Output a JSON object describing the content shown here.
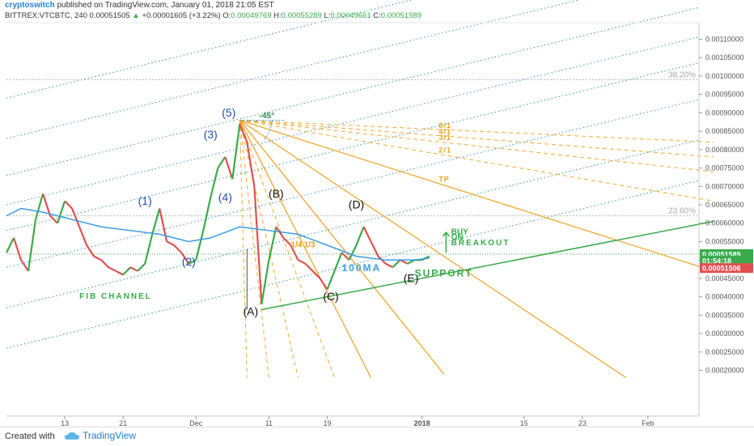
{
  "header": {
    "user": "cryptoswitch",
    "published": "published on TradingView.com, January 01, 2018 21:05 EST",
    "symbol": "BITTREX:VTCBTC, 240",
    "last": "0.00051505",
    "change": "+0.00001605 (+3.22%)",
    "o_label": "O:",
    "o": "0.00049769",
    "h_label": "H:",
    "h": "0.00055289",
    "l_label": "L:",
    "l": "0.00049661",
    "c_label": "C:",
    "c": "0.00051589"
  },
  "footer": {
    "created": "Created with",
    "brand": "TradingView"
  },
  "chart_data": {
    "type": "line",
    "title": "",
    "ylim": [
      0.00015,
      0.0011
    ],
    "y_ticks": [
      "0.00110000",
      "0.00105000",
      "0.00100000",
      "0.00095000",
      "0.00090000",
      "0.00085000",
      "0.00080000",
      "0.00075000",
      "0.00070000",
      "0.00065000",
      "0.00060000",
      "0.00055000",
      "0.00050000",
      "0.00045000",
      "0.00040000",
      "0.00035000",
      "0.00030000",
      "0.00025000",
      "0.00020000"
    ],
    "y_tick_values": [
      0.0011,
      0.00105,
      0.001,
      0.00095,
      0.0009,
      0.00085,
      0.0008,
      0.00075,
      0.0007,
      0.00065,
      0.0006,
      0.00055,
      0.0005,
      0.00045,
      0.0004,
      0.00035,
      0.0003,
      0.00025,
      0.0002
    ],
    "x_ticks": [
      {
        "label": "13",
        "day": 13
      },
      {
        "label": "21",
        "day": 21
      },
      {
        "label": "Dec",
        "day": 31
      },
      {
        "label": "11",
        "day": 41
      },
      {
        "label": "19",
        "day": 49
      },
      {
        "label": "2018",
        "day": 62
      },
      {
        "label": "15",
        "day": 76
      },
      {
        "label": "23",
        "day": 84
      },
      {
        "label": "Feb",
        "day": 93
      }
    ],
    "x_range_days": [
      5,
      100
    ],
    "price_path": [
      [
        5,
        0.00052
      ],
      [
        6,
        0.00056
      ],
      [
        7,
        0.0005
      ],
      [
        8,
        0.00047
      ],
      [
        9,
        0.00061
      ],
      [
        10,
        0.00068
      ],
      [
        11,
        0.00062
      ],
      [
        12,
        0.0006
      ],
      [
        13,
        0.00066
      ],
      [
        14,
        0.00064
      ],
      [
        15,
        0.00059
      ],
      [
        16,
        0.00054
      ],
      [
        17,
        0.00051
      ],
      [
        18,
        0.0005
      ],
      [
        19,
        0.00048
      ],
      [
        20,
        0.00047
      ],
      [
        21,
        0.00046
      ],
      [
        22,
        0.00048
      ],
      [
        23,
        0.00047
      ],
      [
        24,
        0.00049
      ],
      [
        25,
        0.00057
      ],
      [
        26,
        0.00064
      ],
      [
        27,
        0.00055
      ],
      [
        28,
        0.00054
      ],
      [
        29,
        0.00052
      ],
      [
        30,
        0.00049
      ],
      [
        31,
        0.0005
      ],
      [
        32,
        0.00058
      ],
      [
        33,
        0.00067
      ],
      [
        34,
        0.00075
      ],
      [
        35,
        0.00078
      ],
      [
        36,
        0.00072
      ],
      [
        37,
        0.00087
      ],
      [
        38,
        0.00082
      ],
      [
        39,
        0.0007
      ],
      [
        40,
        0.00038
      ],
      [
        41,
        0.0005
      ],
      [
        42,
        0.00059
      ],
      [
        43,
        0.00056
      ],
      [
        44,
        0.00054
      ],
      [
        45,
        0.0005
      ],
      [
        46,
        0.00049
      ],
      [
        47,
        0.00047
      ],
      [
        48,
        0.00045
      ],
      [
        49,
        0.00042
      ],
      [
        50,
        0.00047
      ],
      [
        51,
        0.00052
      ],
      [
        52,
        0.0005
      ],
      [
        53,
        0.00054
      ],
      [
        54,
        0.00059
      ],
      [
        55,
        0.00055
      ],
      [
        56,
        0.00051
      ],
      [
        57,
        0.00049
      ],
      [
        58,
        0.00048
      ],
      [
        59,
        0.0005
      ],
      [
        60,
        0.00049
      ],
      [
        61,
        0.0005
      ],
      [
        62,
        0.0005
      ],
      [
        63,
        0.00051
      ]
    ],
    "ma_100": [
      [
        5,
        0.00062
      ],
      [
        7,
        0.00064
      ],
      [
        10,
        0.00063
      ],
      [
        14,
        0.00061
      ],
      [
        18,
        0.00059
      ],
      [
        22,
        0.00058
      ],
      [
        26,
        0.00057
      ],
      [
        30,
        0.00055
      ],
      [
        33,
        0.00056
      ],
      [
        37,
        0.00059
      ],
      [
        41,
        0.00058
      ],
      [
        45,
        0.00057
      ],
      [
        49,
        0.00054
      ],
      [
        53,
        0.00051
      ],
      [
        57,
        0.0005
      ],
      [
        61,
        0.0005
      ],
      [
        63,
        0.000505
      ]
    ],
    "support_line": [
      [
        40,
        0.000365
      ],
      [
        102,
        0.000605
      ]
    ],
    "fan_origin": [
      37,
      0.00088
    ],
    "fan_lines": [
      {
        "label": "8/1",
        "end": [
          102,
          0.00082
        ],
        "style": "dashed"
      },
      {
        "label": "4/1",
        "end": [
          102,
          0.00078
        ],
        "style": "dashed"
      },
      {
        "label": "3/1",
        "end": [
          102,
          0.00074
        ],
        "style": "dashed"
      },
      {
        "label": "2/1",
        "end": [
          102,
          0.00066
        ],
        "style": "dashed"
      },
      {
        "label": "TP",
        "end": [
          102,
          0.00047
        ],
        "style": "solid"
      },
      {
        "label": "",
        "end": [
          90,
          0.00018
        ],
        "style": "solid"
      },
      {
        "label": "",
        "end": [
          65,
          0.00019
        ],
        "style": "solid"
      },
      {
        "label": "",
        "end": [
          55,
          0.00018
        ],
        "style": "solid"
      },
      {
        "label": "",
        "end": [
          50,
          0.00018
        ],
        "style": "dashed"
      },
      {
        "label": "",
        "end": [
          45,
          0.00018
        ],
        "style": "dashed"
      },
      {
        "label": "",
        "end": [
          41,
          0.00018
        ],
        "style": "dashed"
      },
      {
        "label": "",
        "end": [
          38,
          0.00018
        ],
        "style": "dashed"
      }
    ],
    "fib_channel_lines": [
      {
        "y0": 0.00094,
        "slope": 1.2e-06,
        "color": "#2a9d8f"
      },
      {
        "y0": 0.00083,
        "slope": 1.2e-06,
        "color": "#3b8fd6"
      },
      {
        "y0": 0.00073,
        "slope": 1.2e-06,
        "color": "#2a9d8f"
      },
      {
        "y0": 0.00065,
        "slope": 1.2e-06,
        "color": "#3b8fd6"
      },
      {
        "y0": 0.00058,
        "slope": 1.2e-06,
        "color": "#2a9d8f"
      },
      {
        "y0": 0.00048,
        "slope": 1.2e-06,
        "color": "#3b8fd6"
      },
      {
        "y0": 0.00037,
        "slope": 1.2e-06,
        "color": "#2a9d8f"
      },
      {
        "y0": 0.00026,
        "slope": 1.2e-06,
        "color": "#2a9d8f"
      }
    ],
    "fib_levels": [
      {
        "label": "38.20%",
        "value": 0.00099
      },
      {
        "label": "23.60%",
        "value": 0.00062
      }
    ],
    "current_price_line": 0.000516,
    "wave_labels": [
      {
        "label": "(1)",
        "day": 24,
        "value": 0.00065,
        "color": "#1f4fb4"
      },
      {
        "label": "(2)",
        "day": 30,
        "value": 0.000485,
        "color": "#1f4fb4"
      },
      {
        "label": "(3)",
        "day": 33,
        "value": 0.00083,
        "color": "#1f4fb4"
      },
      {
        "label": "(4)",
        "day": 35,
        "value": 0.00066,
        "color": "#1f4fb4"
      },
      {
        "label": "(5)",
        "day": 35.5,
        "value": 0.00089,
        "color": "#1f4fb4"
      },
      {
        "label": "(A)",
        "day": 38.5,
        "value": 0.00035,
        "color": "#111111"
      },
      {
        "label": "(B)",
        "day": 42,
        "value": 0.00067,
        "color": "#111111"
      },
      {
        "label": "(C)",
        "day": 49.5,
        "value": 0.00039,
        "color": "#111111"
      },
      {
        "label": "(D)",
        "day": 53,
        "value": 0.00064,
        "color": "#111111"
      },
      {
        "label": "(E)",
        "day": 60.5,
        "value": 0.00044,
        "color": "#111111"
      }
    ],
    "annotations": [
      {
        "label": "FIB CHANNEL",
        "day": 15,
        "value": 0.000395,
        "color": "#3aaa4a"
      },
      {
        "label": "100MA",
        "day": 51,
        "value": 0.00047,
        "color": "#3b9be0"
      },
      {
        "label": "SUPPORT",
        "day": 61,
        "value": 0.000455,
        "color": "#3aaa4a"
      },
      {
        "label": "BUY",
        "day": 66,
        "value": 0.00057,
        "color": "#3aaa4a"
      },
      {
        "label": "ON",
        "day": 66,
        "value": 0.000555,
        "color": "#3aaa4a"
      },
      {
        "label": "BREAKOUT",
        "day": 66,
        "value": 0.00054,
        "color": "#3aaa4a"
      },
      {
        "label": "-45°",
        "day": 39.7,
        "value": 0.000885,
        "color": "#2f7f4f"
      },
      {
        "label": "1/4",
        "day": 44,
        "value": 0.000535,
        "color": "#e8a020"
      },
      {
        "label": "1/3",
        "day": 45.8,
        "value": 0.000535,
        "color": "#e8a020"
      }
    ],
    "price_labels": [
      {
        "label": "0.00051589",
        "value": 0.00051589,
        "bg": "#3aaa4a"
      },
      {
        "label": "01:54:18",
        "value": 0.000498,
        "bg": "#3aaa4a"
      },
      {
        "label": "0.00051506",
        "value": 0.000478,
        "bg": "#e05050"
      }
    ]
  }
}
